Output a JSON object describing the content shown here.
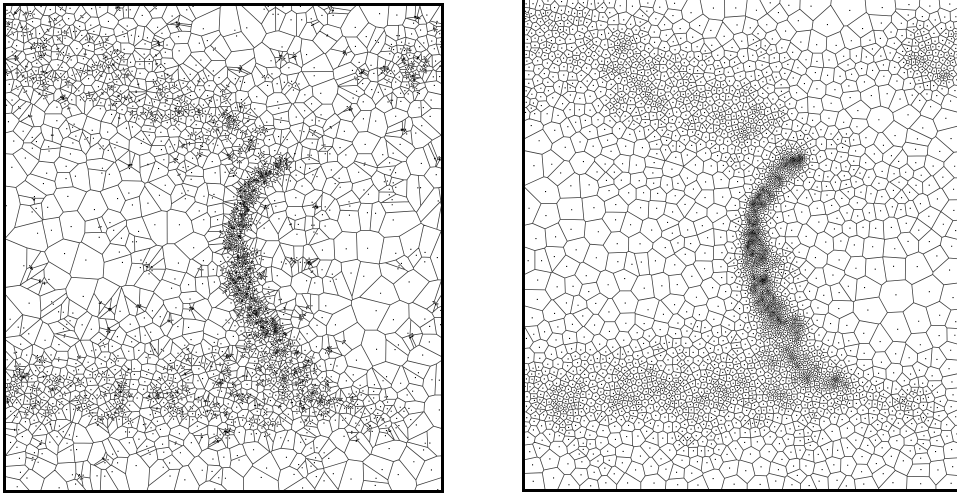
{
  "figure": {
    "panels": [
      {
        "id": "left",
        "description_free": true,
        "style": "centroidal-voronoi-irregular",
        "dense_feature": "crescent",
        "outlier_clusters": true
      },
      {
        "id": "right",
        "description_free": true,
        "style": "centroidal-voronoi-smooth",
        "dense_feature": "crescent",
        "outlier_clusters": false
      }
    ],
    "colors": {
      "edge": "#3a3a3a",
      "seed": "#000000",
      "frame": "#000000",
      "background": "#ffffff"
    }
  }
}
